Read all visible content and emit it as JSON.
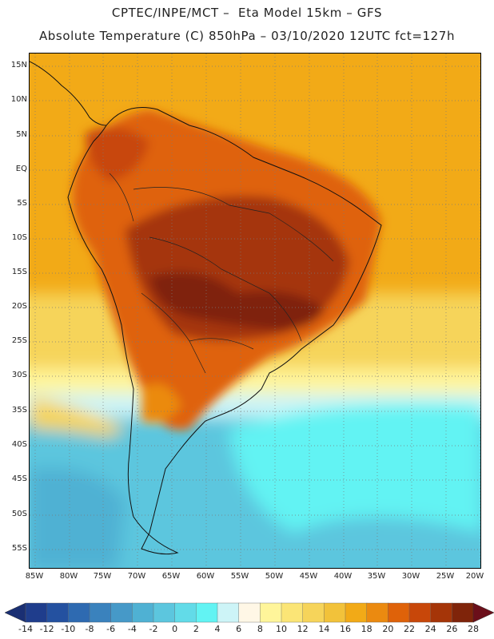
{
  "header": {
    "line1": "CPTEC/INPE/MCT –  Eta Model 15km – GFS",
    "line2": "Absolute Temperature (C) 850hPa – 03/10/2020 12UTC fct=127h"
  },
  "map": {
    "lat_labels": [
      "15N",
      "10N",
      "5N",
      "EQ",
      "5S",
      "10S",
      "15S",
      "20S",
      "25S",
      "30S",
      "35S",
      "40S",
      "45S",
      "50S",
      "55S"
    ],
    "lon_labels": [
      "85W",
      "80W",
      "75W",
      "70W",
      "65W",
      "60W",
      "55W",
      "50W",
      "45W",
      "40W",
      "35W",
      "30W",
      "25W",
      "20W"
    ],
    "field_description": "Hot core over central Brazil/Paraguay; cold water south of 35S",
    "temperature_zones": [
      {
        "region": "north-ocean",
        "temperature_c": 18
      },
      {
        "region": "amazon",
        "temperature_c": 22
      },
      {
        "region": "central-brazil",
        "temperature_c": 26
      },
      {
        "region": "south-atlantic-mid",
        "temperature_c": 10
      },
      {
        "region": "south-atlantic-far",
        "temperature_c": 4
      }
    ]
  },
  "colorbar": {
    "labels": [
      "-14",
      "-12",
      "-10",
      "-8",
      "-6",
      "-4",
      "-2",
      "0",
      "2",
      "4",
      "6",
      "8",
      "10",
      "12",
      "14",
      "16",
      "18",
      "20",
      "22",
      "24",
      "26",
      "28"
    ],
    "colors": [
      "#1f3d8c",
      "#2451a0",
      "#2e6ab1",
      "#3a82bd",
      "#4699c8",
      "#4fb1d3",
      "#5cc6de",
      "#62dbe8",
      "#62f3f3",
      "#cdf4f7",
      "#fff7e6",
      "#fff59a",
      "#fbe576",
      "#f6d45a",
      "#f2c23a",
      "#f2aa17",
      "#eb8a10",
      "#df6209",
      "#c84709",
      "#a53508",
      "#7f240a"
    ],
    "under_color": "#1a2f73",
    "over_color": "#6b0f1a"
  }
}
